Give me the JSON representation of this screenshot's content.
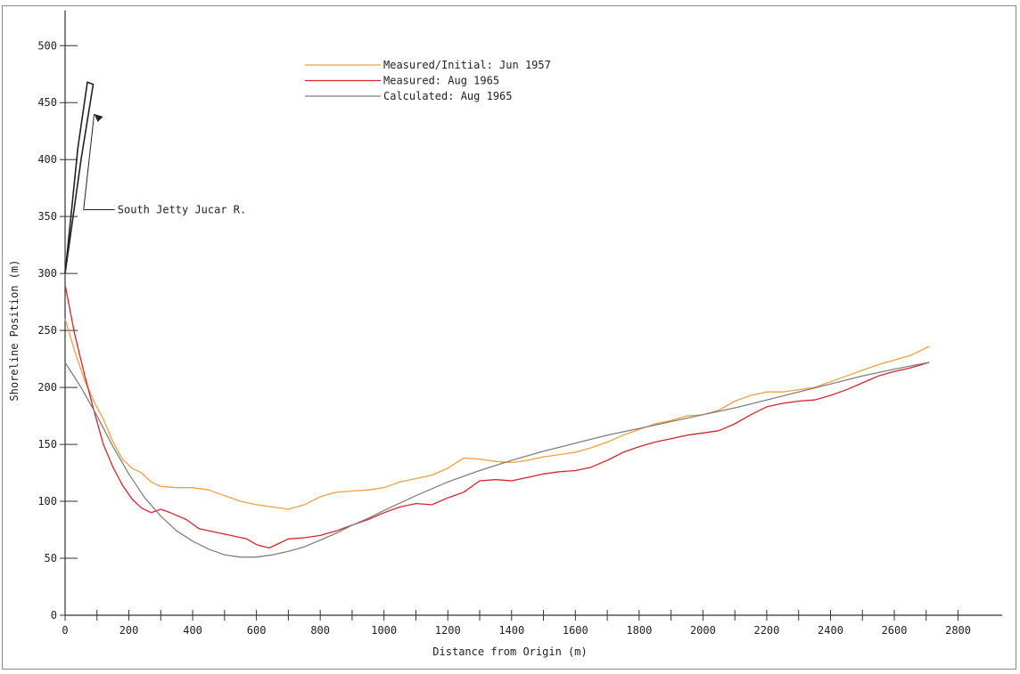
{
  "chart_data": {
    "type": "line",
    "xlabel": "Distance from Origin (m)",
    "ylabel": "Shoreline Position (m)",
    "xlim": [
      0,
      2850
    ],
    "ylim": [
      0,
      520
    ],
    "x_ticks": [
      0,
      200,
      400,
      600,
      800,
      1000,
      1200,
      1400,
      1600,
      1800,
      2000,
      2200,
      2400,
      2600,
      2800
    ],
    "y_ticks": [
      0,
      50,
      100,
      150,
      200,
      250,
      300,
      350,
      400,
      450,
      500
    ],
    "grid": false,
    "legend_position": "top-center",
    "series": [
      {
        "name": "Measured/Initial:  Jun 1957",
        "color": "#f0a040",
        "points": [
          [
            0,
            260
          ],
          [
            30,
            232
          ],
          [
            60,
            207
          ],
          [
            90,
            188
          ],
          [
            120,
            172
          ],
          [
            150,
            152
          ],
          [
            180,
            137
          ],
          [
            210,
            129
          ],
          [
            240,
            125
          ],
          [
            270,
            117
          ],
          [
            300,
            113
          ],
          [
            350,
            112
          ],
          [
            400,
            112
          ],
          [
            450,
            110
          ],
          [
            500,
            105
          ],
          [
            550,
            100
          ],
          [
            600,
            97
          ],
          [
            650,
            95
          ],
          [
            700,
            93
          ],
          [
            750,
            97
          ],
          [
            800,
            104
          ],
          [
            850,
            108
          ],
          [
            900,
            109
          ],
          [
            950,
            110
          ],
          [
            1000,
            112
          ],
          [
            1050,
            117
          ],
          [
            1100,
            120
          ],
          [
            1150,
            123
          ],
          [
            1200,
            129
          ],
          [
            1250,
            138
          ],
          [
            1300,
            137
          ],
          [
            1350,
            135
          ],
          [
            1400,
            134
          ],
          [
            1450,
            136
          ],
          [
            1500,
            139
          ],
          [
            1550,
            141
          ],
          [
            1600,
            143
          ],
          [
            1650,
            147
          ],
          [
            1700,
            152
          ],
          [
            1750,
            158
          ],
          [
            1800,
            163
          ],
          [
            1850,
            168
          ],
          [
            1900,
            171
          ],
          [
            1950,
            175
          ],
          [
            2000,
            176
          ],
          [
            2050,
            180
          ],
          [
            2100,
            188
          ],
          [
            2150,
            193
          ],
          [
            2200,
            196
          ],
          [
            2250,
            196
          ],
          [
            2300,
            198
          ],
          [
            2350,
            200
          ],
          [
            2400,
            205
          ],
          [
            2450,
            210
          ],
          [
            2500,
            215
          ],
          [
            2550,
            220
          ],
          [
            2600,
            224
          ],
          [
            2650,
            228
          ],
          [
            2710,
            236
          ]
        ]
      },
      {
        "name": "Measured:  Aug 1965",
        "color": "#d8242c",
        "points": [
          [
            0,
            290
          ],
          [
            30,
            247
          ],
          [
            60,
            212
          ],
          [
            90,
            180
          ],
          [
            120,
            150
          ],
          [
            150,
            130
          ],
          [
            180,
            114
          ],
          [
            210,
            102
          ],
          [
            240,
            94
          ],
          [
            270,
            90
          ],
          [
            300,
            93
          ],
          [
            330,
            90
          ],
          [
            380,
            84
          ],
          [
            420,
            76
          ],
          [
            470,
            73
          ],
          [
            520,
            70
          ],
          [
            570,
            67
          ],
          [
            600,
            62
          ],
          [
            640,
            59
          ],
          [
            670,
            63
          ],
          [
            700,
            67
          ],
          [
            750,
            68
          ],
          [
            800,
            70
          ],
          [
            850,
            74
          ],
          [
            900,
            79
          ],
          [
            950,
            84
          ],
          [
            1000,
            90
          ],
          [
            1050,
            95
          ],
          [
            1100,
            98
          ],
          [
            1150,
            97
          ],
          [
            1200,
            103
          ],
          [
            1250,
            108
          ],
          [
            1300,
            118
          ],
          [
            1350,
            119
          ],
          [
            1400,
            118
          ],
          [
            1450,
            121
          ],
          [
            1500,
            124
          ],
          [
            1550,
            126
          ],
          [
            1600,
            127
          ],
          [
            1650,
            130
          ],
          [
            1700,
            136
          ],
          [
            1750,
            143
          ],
          [
            1800,
            148
          ],
          [
            1850,
            152
          ],
          [
            1900,
            155
          ],
          [
            1950,
            158
          ],
          [
            2000,
            160
          ],
          [
            2050,
            162
          ],
          [
            2100,
            168
          ],
          [
            2150,
            176
          ],
          [
            2200,
            183
          ],
          [
            2250,
            186
          ],
          [
            2300,
            188
          ],
          [
            2350,
            189
          ],
          [
            2400,
            193
          ],
          [
            2450,
            198
          ],
          [
            2500,
            204
          ],
          [
            2550,
            210
          ],
          [
            2600,
            214
          ],
          [
            2650,
            217
          ],
          [
            2710,
            222
          ]
        ]
      },
      {
        "name": "Calculated:  Aug 1965",
        "color": "#808080",
        "points": [
          [
            0,
            222
          ],
          [
            50,
            200
          ],
          [
            100,
            175
          ],
          [
            150,
            148
          ],
          [
            200,
            124
          ],
          [
            250,
            103
          ],
          [
            300,
            87
          ],
          [
            350,
            74
          ],
          [
            400,
            65
          ],
          [
            450,
            58
          ],
          [
            500,
            53
          ],
          [
            550,
            51
          ],
          [
            600,
            51
          ],
          [
            650,
            53
          ],
          [
            700,
            56
          ],
          [
            750,
            60
          ],
          [
            800,
            66
          ],
          [
            850,
            72
          ],
          [
            900,
            79
          ],
          [
            950,
            85
          ],
          [
            1000,
            92
          ],
          [
            1100,
            105
          ],
          [
            1200,
            117
          ],
          [
            1300,
            127
          ],
          [
            1400,
            136
          ],
          [
            1500,
            144
          ],
          [
            1600,
            151
          ],
          [
            1700,
            158
          ],
          [
            1800,
            164
          ],
          [
            1900,
            170
          ],
          [
            2000,
            176
          ],
          [
            2100,
            182
          ],
          [
            2200,
            189
          ],
          [
            2300,
            196
          ],
          [
            2400,
            203
          ],
          [
            2500,
            210
          ],
          [
            2600,
            216
          ],
          [
            2710,
            222
          ]
        ]
      },
      {
        "name": "",
        "color": "#222222",
        "points": [
          [
            0,
            300
          ],
          [
            20,
            355
          ],
          [
            40,
            410
          ],
          [
            70,
            468
          ],
          [
            88,
            466
          ],
          [
            50,
            400
          ],
          [
            20,
            340
          ],
          [
            0,
            300
          ]
        ]
      }
    ],
    "annotations": [
      {
        "text": "South Jetty Jucar R.",
        "arrow_to": [
          80,
          440
        ],
        "text_at": [
          360,
          356
        ]
      }
    ]
  }
}
